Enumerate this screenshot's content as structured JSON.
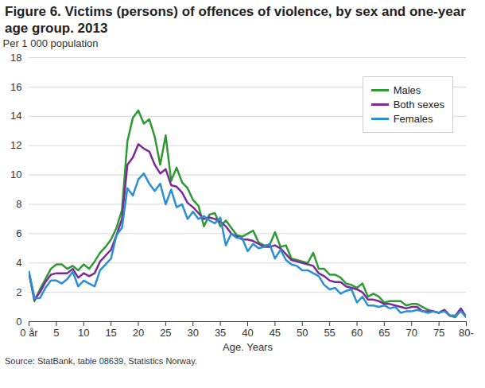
{
  "chart_data": {
    "type": "line",
    "title": "Figure 6. Victims (persons) of offences of violence, by sex and one-year age group. 2013",
    "y_label": "Per 1 000 population",
    "x_label": "Age. Years",
    "source": "Source: StatBank, table 08639, Statistics Norway.",
    "x": [
      0,
      1,
      2,
      3,
      4,
      5,
      6,
      7,
      8,
      9,
      10,
      11,
      12,
      13,
      14,
      15,
      16,
      17,
      18,
      19,
      20,
      21,
      22,
      23,
      24,
      25,
      26,
      27,
      28,
      29,
      30,
      31,
      32,
      33,
      34,
      35,
      36,
      37,
      38,
      39,
      40,
      41,
      42,
      43,
      44,
      45,
      46,
      47,
      48,
      49,
      50,
      51,
      52,
      53,
      54,
      55,
      56,
      57,
      58,
      59,
      60,
      61,
      62,
      63,
      64,
      65,
      66,
      67,
      68,
      69,
      70,
      71,
      72,
      73,
      74,
      75,
      76,
      77,
      78,
      79,
      80
    ],
    "series": [
      {
        "name": "Males",
        "color": "#2f9a35",
        "values": [
          3.3,
          1.4,
          2.2,
          2.9,
          3.6,
          3.9,
          3.9,
          3.6,
          3.8,
          3.5,
          3.9,
          3.6,
          4.1,
          4.7,
          5.1,
          5.6,
          6.4,
          7.6,
          12.3,
          13.9,
          14.4,
          13.5,
          13.8,
          12.6,
          10.7,
          12.7,
          9.6,
          10.5,
          9.5,
          9.1,
          8.3,
          7.9,
          6.5,
          7.3,
          7.4,
          6.5,
          6.9,
          6.4,
          5.9,
          5.8,
          6.0,
          6.2,
          5.4,
          5.2,
          5.2,
          6.1,
          5.1,
          5.2,
          4.3,
          4.2,
          4.1,
          4.0,
          4.7,
          3.6,
          3.6,
          3.2,
          3.2,
          3.0,
          2.6,
          2.5,
          2.3,
          2.6,
          1.7,
          1.9,
          1.7,
          1.3,
          1.4,
          1.4,
          1.4,
          1.1,
          1.2,
          1.2,
          1.0,
          0.8,
          0.7,
          0.6,
          0.8,
          0.4,
          0.3,
          0.8,
          0.3
        ]
      },
      {
        "name": "Both sexes",
        "color": "#7b2a98",
        "values": [
          3.3,
          1.5,
          2.0,
          2.7,
          3.2,
          3.3,
          3.3,
          3.3,
          3.6,
          3.0,
          3.3,
          3.1,
          3.3,
          4.1,
          4.5,
          4.9,
          5.9,
          7.0,
          10.7,
          11.2,
          12.1,
          11.8,
          11.6,
          10.7,
          10.1,
          10.4,
          9.3,
          9.2,
          8.8,
          8.1,
          7.8,
          7.4,
          7.0,
          7.1,
          7.0,
          6.8,
          6.5,
          6.0,
          5.8,
          5.6,
          5.6,
          5.5,
          5.3,
          5.1,
          5.1,
          5.2,
          5.0,
          4.6,
          4.2,
          4.1,
          4.0,
          3.9,
          3.8,
          3.3,
          3.1,
          2.8,
          2.7,
          2.7,
          2.4,
          2.3,
          2.2,
          2.0,
          1.5,
          1.5,
          1.4,
          1.2,
          1.2,
          1.1,
          1.0,
          0.9,
          1.0,
          1.0,
          0.7,
          0.7,
          0.7,
          0.6,
          0.8,
          0.4,
          0.4,
          0.9,
          0.3
        ]
      },
      {
        "name": "Females",
        "color": "#2a8fd6",
        "values": [
          3.4,
          1.6,
          1.6,
          2.3,
          2.8,
          2.8,
          2.6,
          2.9,
          3.4,
          2.4,
          2.8,
          2.6,
          2.4,
          3.5,
          3.9,
          4.3,
          5.9,
          6.4,
          9.1,
          8.6,
          9.7,
          10.1,
          9.4,
          8.9,
          9.4,
          8.0,
          9.0,
          7.8,
          8.0,
          7.0,
          7.5,
          7.0,
          7.2,
          6.9,
          6.7,
          7.1,
          5.2,
          6.0,
          5.7,
          5.7,
          4.8,
          5.3,
          5.0,
          5.1,
          5.3,
          4.3,
          4.9,
          4.2,
          3.9,
          3.8,
          3.5,
          3.5,
          3.3,
          3.1,
          2.5,
          2.2,
          2.3,
          1.9,
          2.1,
          2.2,
          1.3,
          1.7,
          1.1,
          1.1,
          1.0,
          1.1,
          0.9,
          1.0,
          0.6,
          0.7,
          0.7,
          0.8,
          0.7,
          0.6,
          0.7,
          0.6,
          0.7,
          0.4,
          0.4,
          0.7,
          0.3
        ]
      }
    ],
    "xlim": [
      0,
      80
    ],
    "xticks": [
      {
        "value": 0,
        "label": "0 år"
      },
      5,
      10,
      15,
      20,
      25,
      30,
      35,
      40,
      45,
      50,
      55,
      60,
      65,
      70,
      75,
      {
        "value": 80,
        "label": "80-"
      }
    ],
    "ylim": [
      0,
      18
    ],
    "yticks": [
      0,
      2,
      4,
      6,
      8,
      10,
      12,
      14,
      16,
      18
    ],
    "grid": true,
    "legend": "top-right"
  }
}
